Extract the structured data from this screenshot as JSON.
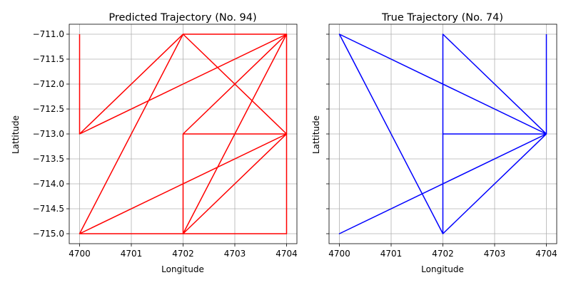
{
  "chart_data": [
    {
      "type": "line",
      "title": "Predicted Trajectory (No. 94)",
      "xlabel": "Longitude",
      "ylabel": "Lattitude",
      "xlim": [
        4699.8,
        4704.2
      ],
      "ylim": [
        -715.2,
        -710.8
      ],
      "xticks": [
        4700,
        4701,
        4702,
        4703,
        4704
      ],
      "yticks": [
        -711.0,
        -711.5,
        -712.0,
        -712.5,
        -713.0,
        -713.5,
        -714.0,
        -714.5,
        -715.0
      ],
      "xtick_labels": [
        "4700",
        "4701",
        "4702",
        "4703",
        "4704"
      ],
      "ytick_labels": [
        "−711.0",
        "−711.5",
        "−712.0",
        "−712.5",
        "−713.0",
        "−713.5",
        "−714.0",
        "−714.5",
        "−715.0"
      ],
      "grid": true,
      "color": "#ff0000",
      "x": [
        4700,
        4700,
        4704,
        4702,
        4700,
        4702,
        4704,
        4702,
        4704,
        4702,
        4700,
        4704,
        4702,
        4702,
        4704,
        4704,
        4702,
        4704,
        4700,
        4702,
        4704,
        4702,
        4704
      ],
      "y": [
        -711,
        -713,
        -711,
        -711,
        -715,
        -715,
        -711,
        -713,
        -713,
        -711,
        -713,
        -711,
        -713,
        -715,
        -711,
        -715,
        -715,
        -713,
        -715,
        -711,
        -713,
        -715,
        -711
      ]
    },
    {
      "type": "line",
      "title": "True Trajectory (No. 74)",
      "xlabel": "Longitude",
      "ylabel": "Lattitude",
      "xlim": [
        4699.8,
        4704.2
      ],
      "ylim": [
        -715.2,
        -710.8
      ],
      "xticks": [
        4700,
        4701,
        4702,
        4703,
        4704
      ],
      "xtick_labels": [
        "4700",
        "4701",
        "4702",
        "4703",
        "4704"
      ],
      "ytick_labels_visible": false,
      "grid": true,
      "color": "#0000ff",
      "x": [
        4704,
        4704,
        4700,
        4702,
        4704,
        4702,
        4702,
        4704,
        4700,
        4704,
        4702,
        4702,
        4704,
        4700
      ],
      "y": [
        -711,
        -713,
        -711,
        -715,
        -713,
        -711,
        -713,
        -713,
        -715,
        -713,
        -715,
        -713,
        -713,
        -711
      ]
    }
  ]
}
